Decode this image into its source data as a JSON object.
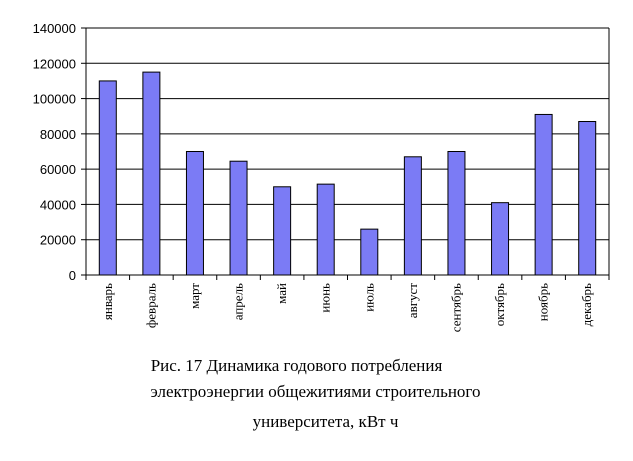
{
  "chart_data": {
    "type": "bar",
    "categories": [
      "январь",
      "февраль",
      "март",
      "апрель",
      "май",
      "июнь",
      "июль",
      "август",
      "сентябрь",
      "октябрь",
      "ноябрь",
      "декабрь"
    ],
    "values": [
      110000,
      115000,
      70000,
      64500,
      50000,
      51500,
      26000,
      67000,
      70000,
      41000,
      91000,
      87000
    ],
    "ylim": [
      0,
      140000
    ],
    "yticks": [
      "0",
      "20000",
      "40000",
      "60000",
      "80000",
      "100000",
      "120000",
      "140000"
    ],
    "grid": true,
    "legend": "none",
    "bar_color": "#7b7bf5"
  },
  "caption": {
    "line1": "Рис. 17 Динамика годового потребления",
    "line2": "электроэнергии общежитиями строительного",
    "line3": "университета, кВт ч"
  }
}
